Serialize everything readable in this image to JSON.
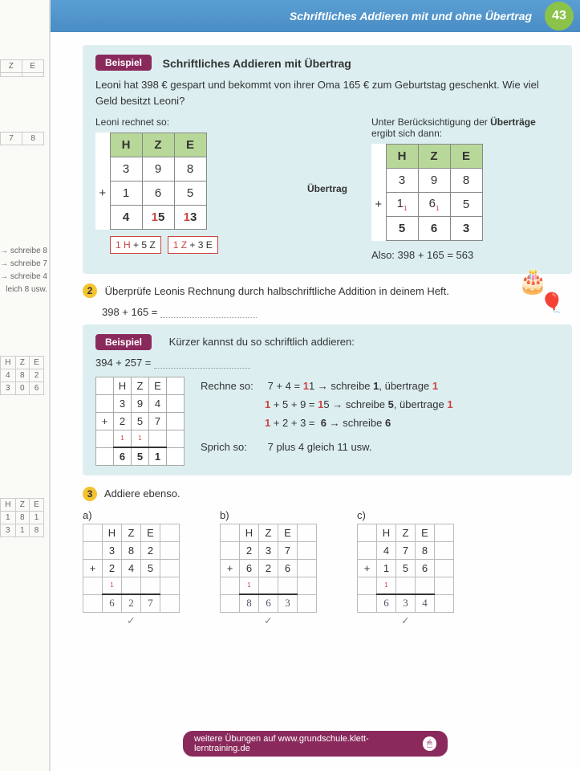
{
  "header": {
    "title": "Schriftliches Addieren mit und ohne Übertrag",
    "page_number": "43"
  },
  "example1": {
    "tag": "Beispiel",
    "title": "Schriftliches Addieren mit Übertrag",
    "problem": "Leoni hat 398 € gespart und bekommt von ihrer Oma 165 € zum Geburtstag geschenkt. Wie viel Geld besitzt Leoni?",
    "left_label": "Leoni rechnet so:",
    "right_label": "Unter Berücksichtigung der Überträge ergibt sich dann:",
    "right_label_bold": "Überträge",
    "headers": [
      "H",
      "Z",
      "E"
    ],
    "row1": [
      "3",
      "9",
      "8"
    ],
    "row2": [
      "1",
      "6",
      "5"
    ],
    "uebertrag": "Übertrag",
    "left_sum": [
      "4",
      "15",
      "13"
    ],
    "right_sum": [
      "5",
      "6",
      "3"
    ],
    "carry1": "1 H + 5 Z",
    "carry2": "1 Z + 3 E",
    "also": "Also: 398 + 165 = 563"
  },
  "task2": {
    "num": "2",
    "text": "Überprüfe Leonis Rechnung durch halbschriftliche Addition in deinem Heft.",
    "expr": "398 + 165 ="
  },
  "example2": {
    "tag": "Beispiel",
    "title": "Kürzer kannst du so schriftlich addieren:",
    "expr": "394 + 257 =",
    "grid_h": [
      "H",
      "Z",
      "E"
    ],
    "grid_r1": [
      "3",
      "9",
      "4"
    ],
    "grid_r2": [
      "2",
      "5",
      "7"
    ],
    "grid_sum": [
      "6",
      "5",
      "1"
    ],
    "rechne_label": "Rechne so:",
    "rechne_lines": [
      {
        "plain": "7 + 4 = ",
        "res": "11",
        "tail": " → schreibe 1, übertrage 1"
      },
      {
        "plain": "1 + 5 + 9 = ",
        "res": "15",
        "tail": " → schreibe 5, übertrage 1"
      },
      {
        "plain": "1 + 2 + 3 = ",
        "res": "6",
        "tail": " → schreibe 6",
        "bold6": true
      }
    ],
    "sprich_label": "Sprich so:",
    "sprich": "7 plus 4 gleich 11 usw."
  },
  "task3": {
    "num": "3",
    "text": "Addiere ebenso.",
    "problems": [
      {
        "lbl": "a)",
        "h": [
          "H",
          "Z",
          "E"
        ],
        "r1": [
          "3",
          "8",
          "2"
        ],
        "r2": [
          "2",
          "4",
          "5"
        ],
        "ans": [
          "6",
          "2",
          "7"
        ]
      },
      {
        "lbl": "b)",
        "h": [
          "H",
          "Z",
          "E"
        ],
        "r1": [
          "2",
          "3",
          "7"
        ],
        "r2": [
          "6",
          "2",
          "6"
        ],
        "ans": [
          "8",
          "6",
          "3"
        ]
      },
      {
        "lbl": "c)",
        "h": [
          "H",
          "Z",
          "E"
        ],
        "r1": [
          "4",
          "7",
          "8"
        ],
        "r2": [
          "1",
          "5",
          "6"
        ],
        "ans": [
          "6",
          "3",
          "4"
        ]
      }
    ]
  },
  "footer": {
    "text": "weitere Übungen auf www.grundschule.klett-lerntraining.de"
  },
  "left_peek": {
    "hints": [
      "→ schreibe 8",
      "→ schreibe 7",
      "→ schreibe 4",
      "leich 8 usw."
    ],
    "t1_h": [
      "Z",
      "E"
    ],
    "t2_h": [
      "H",
      "Z",
      "E"
    ],
    "t2_r1": [
      "4",
      "8",
      "2"
    ],
    "t2_r2": [
      "3",
      "0",
      "6"
    ],
    "t3_h": [
      "H",
      "Z",
      "E"
    ],
    "t3_r1": [
      "1",
      "8",
      "1"
    ],
    "t3_r2": [
      "3",
      "1",
      "8"
    ]
  },
  "colors": {
    "header_bg": "#4a8cc4",
    "badge_bg": "#8bc34a",
    "example_bg": "#dceef0",
    "tag_bg": "#8a2a5c",
    "table_header_bg": "#b8d89a",
    "task_num_bg": "#f4c430",
    "red": "#c44"
  }
}
